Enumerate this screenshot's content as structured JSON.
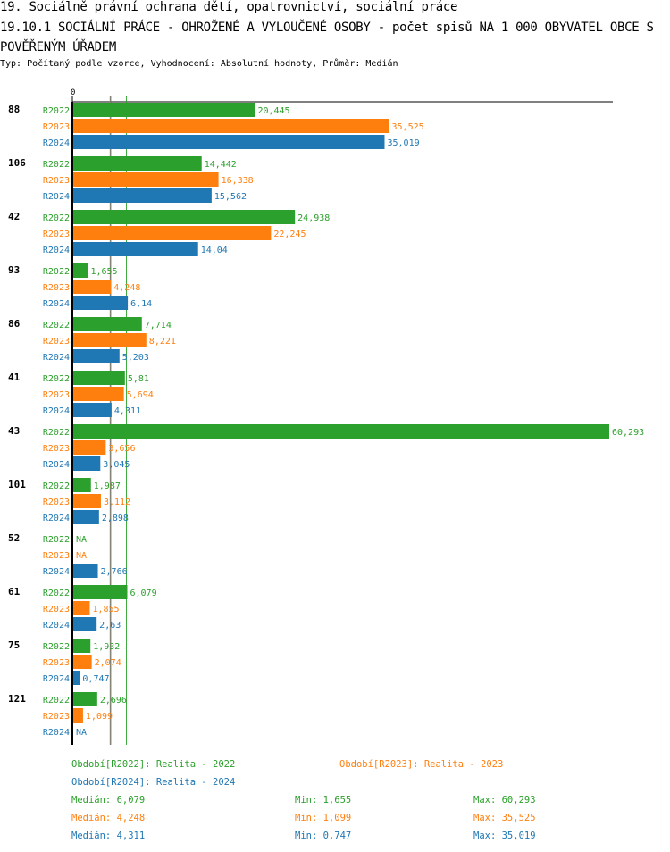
{
  "header": {
    "title": "19. Sociálně právní ochrana dětí, opatrovnictví, sociální práce",
    "subtitle": "19.10.1 SOCIÁLNÍ PRÁCE - OHROŽENÉ A VYLOUČENÉ OSOBY - počet spisů NA 1 000 OBYVATEL OBCE S POVĚŘENÝM ÚŘADEM",
    "meta": "Typ: Počítaný podle vzorce, Vyhodnocení: Absolutní hodnoty, Průměr: Medián"
  },
  "chart_data": {
    "type": "bar",
    "orientation": "horizontal",
    "title": "19.10.1 SOCIÁLNÍ PRÁCE - OHROŽENÉ A VYLOUČENÉ OSOBY - počet spisů NA 1 000 OBYVATEL OBCE S POVĚŘENÝM ÚŘADEM",
    "x_tick_labels": [
      "0"
    ],
    "xlim": [
      0,
      60.293
    ],
    "categories": [
      "88",
      "106",
      "42",
      "93",
      "86",
      "41",
      "43",
      "101",
      "52",
      "61",
      "75",
      "121"
    ],
    "series": [
      {
        "key": "R2022",
        "name": "Realita - 2022",
        "color": "#2ca02c",
        "values": [
          20.445,
          14.442,
          24.938,
          1.655,
          7.714,
          5.81,
          60.293,
          1.987,
          null,
          6.079,
          1.932,
          2.696
        ],
        "labels": [
          "20,445",
          "14,442",
          "24,938",
          "1,655",
          "7,714",
          "5,81",
          "60,293",
          "1,987",
          "NA",
          "6,079",
          "1,932",
          "2,696"
        ]
      },
      {
        "key": "R2023",
        "name": "Realita - 2023",
        "color": "#ff7f0e",
        "values": [
          35.525,
          16.338,
          22.245,
          4.248,
          8.221,
          5.694,
          3.656,
          3.112,
          null,
          1.855,
          2.074,
          1.099
        ],
        "labels": [
          "35,525",
          "16,338",
          "22,245",
          "4,248",
          "8,221",
          "5,694",
          "3,656",
          "3,112",
          "NA",
          "1,855",
          "2,074",
          "1,099"
        ]
      },
      {
        "key": "R2024",
        "name": "Realita - 2024",
        "color": "#1f77b4",
        "values": [
          35.019,
          15.562,
          14.04,
          6.14,
          5.203,
          4.311,
          3.045,
          2.898,
          2.766,
          2.63,
          0.747,
          null
        ],
        "labels": [
          "35,019",
          "15,562",
          "14,04",
          "6,14",
          "5,203",
          "4,311",
          "3,045",
          "2,898",
          "2,766",
          "2,63",
          "0,747",
          "NA"
        ]
      }
    ],
    "median_lines": [
      {
        "key": "R2022",
        "value": 6.079,
        "color": "#2ca02c"
      },
      {
        "key": "R2023",
        "value": 4.248,
        "color": "#ff7f0e"
      },
      {
        "key": "R2024",
        "value": 4.311,
        "color": "#1f77b4"
      }
    ],
    "legend": [
      {
        "text": "Období[R2022]: Realita - 2022",
        "color": "#2ca02c"
      },
      {
        "text": "Období[R2023]: Realita - 2023",
        "color": "#ff7f0e"
      },
      {
        "text": "Období[R2024]: Realita - 2024",
        "color": "#1f77b4"
      }
    ],
    "legend_position": "bottom",
    "stats": [
      {
        "median": "Medián: 6,079",
        "min": "Min: 1,655",
        "max": "Max: 60,293",
        "color": "#2ca02c"
      },
      {
        "median": "Medián: 4,248",
        "min": "Min: 1,099",
        "max": "Max: 35,525",
        "color": "#ff7f0e"
      },
      {
        "median": "Medián: 4,311",
        "min": "Min: 0,747",
        "max": "Max: 35,019",
        "color": "#1f77b4"
      }
    ],
    "grid": false
  }
}
